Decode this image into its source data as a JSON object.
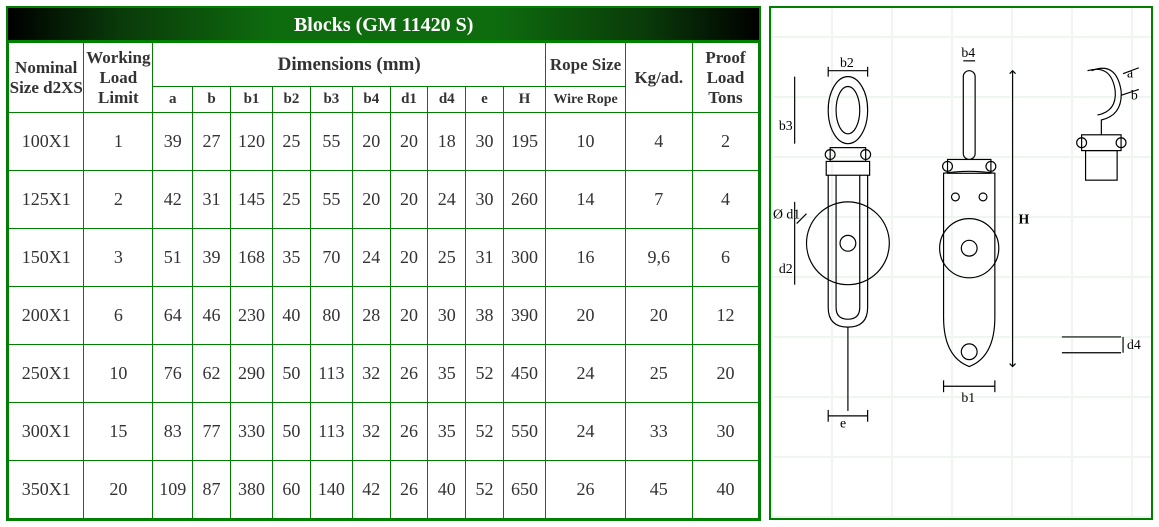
{
  "title": "Blocks (GM 11420 S)",
  "colors": {
    "border": "#008000",
    "title_gradient_from": "#000000",
    "title_gradient_mid": "#0e6b0e",
    "title_text": "#ffffff",
    "cell_text": "#333333",
    "diagram_stroke": "#000000",
    "background": "#ffffff"
  },
  "headers": {
    "nominal": "Nominal Size d2XS",
    "wll": "Working Load Limit",
    "dimensions": "Dimensions  (mm)",
    "dim_sub": [
      "a",
      "b",
      "b1",
      "b2",
      "b3",
      "b4",
      "d1",
      "d4",
      "e",
      "H"
    ],
    "rope": "Rope Size",
    "rope_sub": "Wire Rope",
    "kg": "Kg/ad.",
    "proof": "Proof Load Tons"
  },
  "rows": [
    {
      "nom": "100X1",
      "wll": "1",
      "a": "39",
      "b": "27",
      "b1": "120",
      "b2": "25",
      "b3": "55",
      "b4": "20",
      "d1": "20",
      "d4": "18",
      "e": "30",
      "H": "195",
      "rope": "10",
      "kg": "4",
      "proof": "2"
    },
    {
      "nom": "125X1",
      "wll": "2",
      "a": "42",
      "b": "31",
      "b1": "145",
      "b2": "25",
      "b3": "55",
      "b4": "20",
      "d1": "20",
      "d4": "24",
      "e": "30",
      "H": "260",
      "rope": "14",
      "kg": "7",
      "proof": "4"
    },
    {
      "nom": "150X1",
      "wll": "3",
      "a": "51",
      "b": "39",
      "b1": "168",
      "b2": "35",
      "b3": "70",
      "b4": "24",
      "d1": "20",
      "d4": "25",
      "e": "31",
      "H": "300",
      "rope": "16",
      "kg": "9,6",
      "proof": "6"
    },
    {
      "nom": "200X1",
      "wll": "6",
      "a": "64",
      "b": "46",
      "b1": "230",
      "b2": "40",
      "b3": "80",
      "b4": "28",
      "d1": "20",
      "d4": "30",
      "e": "38",
      "H": "390",
      "rope": "20",
      "kg": "20",
      "proof": "12"
    },
    {
      "nom": "250X1",
      "wll": "10",
      "a": "76",
      "b": "62",
      "b1": "290",
      "b2": "50",
      "b3": "113",
      "b4": "32",
      "d1": "26",
      "d4": "35",
      "e": "52",
      "H": "450",
      "rope": "24",
      "kg": "25",
      "proof": "20"
    },
    {
      "nom": "300X1",
      "wll": "15",
      "a": "83",
      "b": "77",
      "b1": "330",
      "b2": "50",
      "b3": "113",
      "b4": "32",
      "d1": "26",
      "d4": "35",
      "e": "52",
      "H": "550",
      "rope": "24",
      "kg": "33",
      "proof": "30"
    },
    {
      "nom": "350X1",
      "wll": "20",
      "a": "109",
      "b": "87",
      "b1": "380",
      "b2": "60",
      "b3": "140",
      "b4": "42",
      "d1": "26",
      "d4": "40",
      "e": "52",
      "H": "650",
      "rope": "26",
      "kg": "45",
      "proof": "40"
    }
  ],
  "diagram_labels": {
    "b2": "b2",
    "b4": "b4",
    "a": "a",
    "b": "b",
    "b3": "b3",
    "d1": "Ø d1",
    "d2": "d2",
    "H": "H",
    "e": "e",
    "b1": "b1",
    "d4": "d4"
  }
}
